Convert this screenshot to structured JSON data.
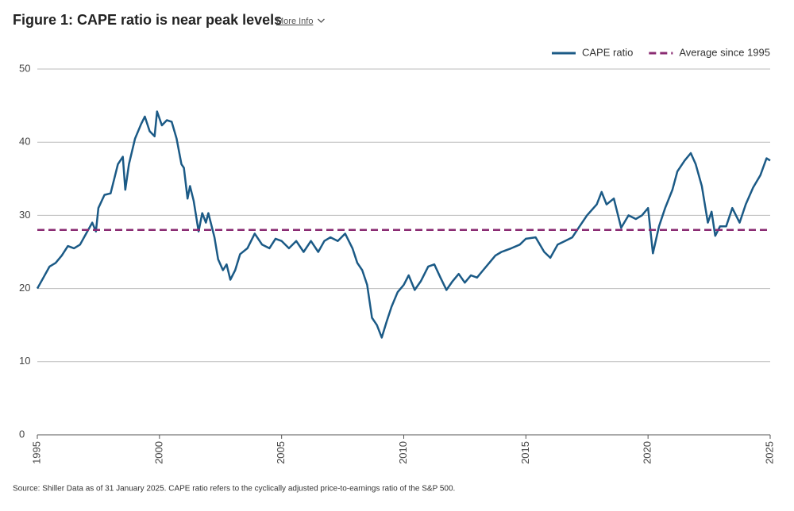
{
  "chart_data": {
    "type": "line",
    "title": "Figure 1: CAPE ratio is near peak levels",
    "link_text": "More Info",
    "source": "Source: Shiller Data as of 31 January 2025. CAPE ratio refers to the cyclically adjusted price-to-earnings ratio of the S&P 500.",
    "xlim": [
      1995,
      2025
    ],
    "xticks": [
      1995,
      2000,
      2005,
      2010,
      2015,
      2020,
      2025
    ],
    "ylim": [
      0,
      50
    ],
    "yticks": [
      0,
      10,
      20,
      30,
      40,
      50
    ],
    "grid": true,
    "legend": "top-right",
    "series": [
      {
        "name": "CAPE ratio",
        "color": "#1b5a86",
        "style": "solid",
        "x": [
          1995.0,
          1995.25,
          1995.5,
          1995.75,
          1996.0,
          1996.25,
          1996.5,
          1996.75,
          1997.0,
          1997.25,
          1997.4,
          1997.5,
          1997.75,
          1998.0,
          1998.3,
          1998.5,
          1998.6,
          1998.75,
          1999.0,
          1999.25,
          1999.4,
          1999.6,
          1999.8,
          1999.9,
          2000.1,
          2000.3,
          2000.5,
          2000.7,
          2000.9,
          2001.0,
          2001.15,
          2001.25,
          2001.4,
          2001.6,
          2001.75,
          2001.9,
          2002.0,
          2002.25,
          2002.4,
          2002.6,
          2002.75,
          2002.9,
          2003.1,
          2003.3,
          2003.6,
          2003.9,
          2004.2,
          2004.5,
          2004.75,
          2005.0,
          2005.3,
          2005.6,
          2005.9,
          2006.2,
          2006.5,
          2006.75,
          2007.0,
          2007.3,
          2007.6,
          2007.9,
          2008.1,
          2008.3,
          2008.5,
          2008.7,
          2008.9,
          2009.1,
          2009.3,
          2009.5,
          2009.75,
          2010.0,
          2010.2,
          2010.45,
          2010.7,
          2011.0,
          2011.25,
          2011.5,
          2011.75,
          2012.0,
          2012.25,
          2012.5,
          2012.75,
          2013.0,
          2013.25,
          2013.5,
          2013.75,
          2014.0,
          2014.4,
          2014.75,
          2015.0,
          2015.4,
          2015.75,
          2016.0,
          2016.3,
          2016.6,
          2016.9,
          2017.2,
          2017.5,
          2017.9,
          2018.1,
          2018.3,
          2018.6,
          2018.9,
          2019.2,
          2019.5,
          2019.75,
          2020.0,
          2020.2,
          2020.45,
          2020.7,
          2021.0,
          2021.2,
          2021.5,
          2021.75,
          2021.95,
          2022.2,
          2022.45,
          2022.6,
          2022.75,
          2022.95,
          2023.2,
          2023.45,
          2023.75,
          2024.0,
          2024.3,
          2024.6,
          2024.85,
          2025.0
        ],
        "values": [
          20,
          21.5,
          23,
          23.5,
          24.5,
          25.8,
          25.5,
          26,
          27.5,
          29,
          27.8,
          31,
          32.8,
          33,
          37,
          38,
          33.5,
          37,
          40.5,
          42.5,
          43.5,
          41.5,
          40.8,
          44.2,
          42.3,
          43,
          42.8,
          40.5,
          37,
          36.5,
          32.3,
          34,
          32,
          27.8,
          30.3,
          29,
          30.3,
          27,
          24,
          22.5,
          23.3,
          21.2,
          22.5,
          24.7,
          25.5,
          27.5,
          26,
          25.5,
          26.8,
          26.5,
          25.5,
          26.5,
          25,
          26.5,
          25,
          26.5,
          27,
          26.5,
          27.5,
          25.5,
          23.5,
          22.5,
          20.5,
          16,
          15,
          13.3,
          15.5,
          17.5,
          19.5,
          20.5,
          21.8,
          19.8,
          21,
          23,
          23.3,
          21.5,
          19.8,
          21,
          22,
          20.8,
          21.8,
          21.5,
          22.5,
          23.5,
          24.5,
          25,
          25.5,
          26,
          26.8,
          27,
          25,
          24.2,
          26,
          26.5,
          27,
          28.5,
          30,
          31.5,
          33.2,
          31.5,
          32.3,
          28.3,
          30,
          29.5,
          30,
          31,
          24.8,
          28.5,
          31,
          33.5,
          36,
          37.5,
          38.5,
          37,
          34,
          29,
          30.5,
          27.2,
          28.5,
          28.5,
          31,
          29,
          31.5,
          33.8,
          35.5,
          37.8,
          37.5
        ]
      },
      {
        "name": "Average since 1995",
        "color": "#8a2b72",
        "style": "dashed",
        "x": [
          1995,
          2025
        ],
        "values": [
          28,
          28
        ]
      }
    ]
  }
}
